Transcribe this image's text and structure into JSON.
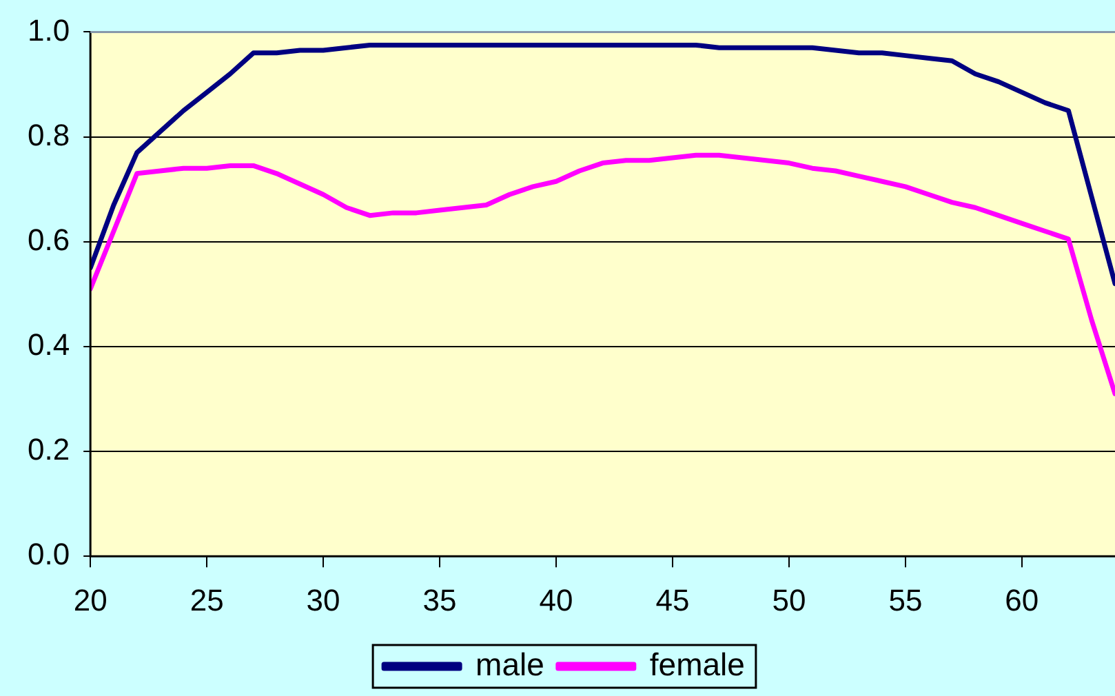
{
  "chart_data": {
    "type": "line",
    "x": [
      20,
      21,
      22,
      23,
      24,
      25,
      26,
      27,
      28,
      29,
      30,
      31,
      32,
      33,
      34,
      35,
      36,
      37,
      38,
      39,
      40,
      41,
      42,
      43,
      44,
      45,
      46,
      47,
      48,
      49,
      50,
      51,
      52,
      53,
      54,
      55,
      56,
      57,
      58,
      59,
      60,
      61,
      62,
      63,
      64
    ],
    "series": [
      {
        "name": "male",
        "color": "#000080",
        "values": [
          0.55,
          0.67,
          0.77,
          0.81,
          0.85,
          0.885,
          0.92,
          0.96,
          0.96,
          0.965,
          0.965,
          0.97,
          0.975,
          0.975,
          0.975,
          0.975,
          0.975,
          0.975,
          0.975,
          0.975,
          0.975,
          0.975,
          0.975,
          0.975,
          0.975,
          0.975,
          0.975,
          0.97,
          0.97,
          0.97,
          0.97,
          0.97,
          0.965,
          0.96,
          0.96,
          0.955,
          0.95,
          0.945,
          0.92,
          0.905,
          0.885,
          0.865,
          0.85,
          0.685,
          0.52
        ]
      },
      {
        "name": "female",
        "color": "#ff00ff",
        "values": [
          0.51,
          0.62,
          0.73,
          0.735,
          0.74,
          0.74,
          0.745,
          0.745,
          0.73,
          0.71,
          0.69,
          0.665,
          0.65,
          0.655,
          0.655,
          0.66,
          0.665,
          0.67,
          0.69,
          0.705,
          0.715,
          0.735,
          0.75,
          0.755,
          0.755,
          0.76,
          0.765,
          0.765,
          0.76,
          0.755,
          0.75,
          0.74,
          0.735,
          0.725,
          0.715,
          0.705,
          0.69,
          0.675,
          0.665,
          0.65,
          0.635,
          0.62,
          0.605,
          0.45,
          0.31
        ]
      }
    ],
    "xlim": [
      20,
      64
    ],
    "xticks": [
      20,
      25,
      30,
      35,
      40,
      45,
      50,
      55,
      60
    ],
    "ylim": [
      0,
      1
    ],
    "yticks": [
      {
        "value": 0,
        "label": "0.0"
      },
      {
        "value": 0.2,
        "label": "0.2"
      },
      {
        "value": 0.4,
        "label": "0.4"
      },
      {
        "value": 0.6,
        "label": "0.6"
      },
      {
        "value": 0.8,
        "label": "0.8"
      },
      {
        "value": 1,
        "label": "1.0"
      }
    ],
    "grid": "y",
    "legend": "bottom",
    "marker": "none",
    "line_style": "solid"
  }
}
